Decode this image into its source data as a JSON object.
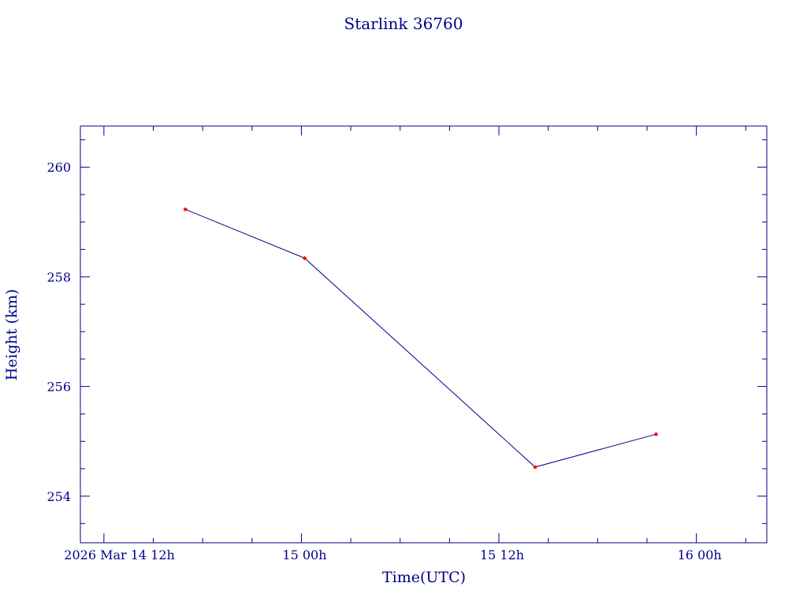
{
  "chart_data": {
    "type": "line",
    "title": "Starlink 36760",
    "xlabel": "Time(UTC)",
    "ylabel": "Height (km)",
    "x_tick_labels": [
      {
        "at_hours": 12,
        "label": "2026 Mar 14  12h"
      },
      {
        "at_hours": 24,
        "label": "15  00h"
      },
      {
        "at_hours": 36,
        "label": "15  12h"
      },
      {
        "at_hours": 48,
        "label": "16  00h"
      }
    ],
    "y_tick_labels": [
      "254",
      "256",
      "258",
      "260"
    ],
    "y_ticks": [
      254,
      256,
      258,
      260
    ],
    "ylim": [
      253.15,
      260.75
    ],
    "xlim_hours": [
      10.57,
      52.28
    ],
    "x_minor_step_hours": 3,
    "y_minor_step": 0.5,
    "series": [
      {
        "x_hours": [
          16.95,
          24.2,
          38.2,
          45.55
        ],
        "y": [
          259.23,
          258.34,
          254.53,
          255.13
        ]
      }
    ],
    "grid": false,
    "line_color": "#00008b",
    "marker_color": "#ff0000",
    "axis_color": "#00008b"
  }
}
